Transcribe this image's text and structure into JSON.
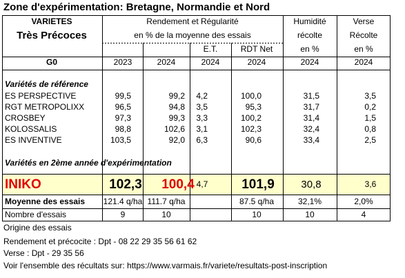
{
  "title": "Zone d'expérimentation: Bretagne, Normandie et Nord",
  "header": {
    "varietes": "VARIETES",
    "group": "Très Précoces",
    "g0": "G0",
    "rendement": "Rendement et Régularité",
    "rendement_sub": "en % de la moyenne des essais",
    "et": "E.T.",
    "rdt_net": "RDT Net",
    "humidite": [
      "Humidité",
      "récolte",
      "en %"
    ],
    "verse": [
      "Verse",
      "Récolte",
      "en %"
    ],
    "years": [
      "2023",
      "2024",
      "2024",
      "2024",
      "2024",
      "2024"
    ]
  },
  "reference": {
    "label": "Variétés de référence",
    "rows": [
      [
        "ES PERSPECTIVE",
        "99,5",
        "99,2",
        "4,2",
        "100,0",
        "31,5",
        "3,5"
      ],
      [
        "RGT METROPOLIXX",
        "96,5",
        "94,8",
        "3,5",
        "95,3",
        "31,7",
        "0,2"
      ],
      [
        "CROSBEY",
        "97,3",
        "99,3",
        "3,3",
        "100,2",
        "31,4",
        "1,5"
      ],
      [
        "KOLOSSALIS",
        "98,8",
        "102,6",
        "3,1",
        "102,3",
        "32,4",
        "0,8"
      ],
      [
        "ES INVENTIVE",
        "103,5",
        "92,0",
        "6,3",
        "90,6",
        "33,4",
        "2,5"
      ]
    ]
  },
  "trial": {
    "label": "Variétés en 2ème année d'expérimentation",
    "rows": [
      [
        "INIKO",
        "102,3",
        "100,4",
        "4,7",
        "101,9",
        "30,8",
        "3,6"
      ]
    ]
  },
  "moyenne": {
    "label": "Moyenne des essais",
    "values": [
      "121.4 q/ha",
      "111.7 q/ha",
      "87.5 q/ha",
      "32,1%",
      "2,0%"
    ]
  },
  "nombre": {
    "label": "Nombre d'essais",
    "values": [
      "9",
      "10",
      "10",
      "10",
      "4"
    ]
  },
  "notes": [
    "Origine des essais",
    "Rendement et précocite :  Dpt - 08 22 29 35 56 61 62",
    "Verse : Dpt - 29 35 56",
    "Voir l'ensemble des récultats sur: https://www.varmais.fr/variete/resultats-post-inscription"
  ]
}
